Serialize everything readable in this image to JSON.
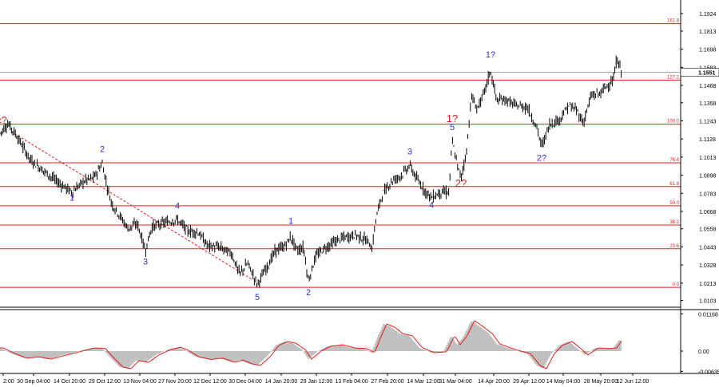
{
  "chart_data": [
    {
      "type": "line",
      "chart_kind": "candlestick price chart (EUR/USD-style, 4H) with Fibonacci levels and Elliott wave labels",
      "y_ticks": [
        "1.1924",
        "1.1813",
        "1.1698",
        "1.1583",
        "1.1468",
        "1.1358",
        "1.1243",
        "1.1128",
        "1.1013",
        "1.0898",
        "1.0783",
        "1.0668",
        "1.0558",
        "1.0443",
        "1.0328",
        "1.0213",
        "1.0103"
      ],
      "price_tag": "1.1551",
      "current_price": 1.1551,
      "x_ticks": [
        "2:00",
        "30 Sep 04:00",
        "14 Oct 20:00",
        "29 Oct 12:00",
        "13 Nov 04:00",
        "27 Nov 20:00",
        "12 Dec 12:00",
        "30 Dec 04:00",
        "14 Jan 20:00",
        "29 Jan 12:00",
        "13 Feb 04:00",
        "27 Feb 20:00",
        "14 Mar 12:00",
        "31 Mar 04:00",
        "14 Apr 20:00",
        "29 Apr 12:00",
        "14 May 04:00",
        "28 May 20:00",
        "12 Jun 12:00"
      ],
      "fib_levels": [
        {
          "label": "161.8",
          "price": 1.186
        },
        {
          "label": "127.2",
          "price": 1.1502
        },
        {
          "label": "100.0",
          "price": 1.1222
        },
        {
          "label": "76.4",
          "price": 1.0977
        },
        {
          "label": "61.8",
          "price": 1.0826
        },
        {
          "label": "50.0",
          "price": 1.0704
        },
        {
          "label": "38.2",
          "price": 1.0582
        },
        {
          "label": "23.6",
          "price": 1.0431
        },
        {
          "label": "0.0",
          "price": 1.0186
        }
      ],
      "wave_labels": [
        {
          "text": "c?",
          "color": "#e31c1c",
          "at": 2,
          "price": 1.1225
        },
        {
          "text": "1",
          "color": "#2f2fd0",
          "at": 90,
          "price": 1.0735
        },
        {
          "text": "2",
          "color": "#2f2fd0",
          "at": 128,
          "price": 1.1045
        },
        {
          "text": "3",
          "color": "#2f2fd0",
          "at": 182,
          "price": 1.033
        },
        {
          "text": "4",
          "color": "#2f2fd0",
          "at": 222,
          "price": 1.0685
        },
        {
          "text": "5",
          "color": "#2f2fd0",
          "at": 322,
          "price": 1.0105
        },
        {
          "text": "1",
          "color": "#2f2fd0",
          "at": 364,
          "price": 1.059
        },
        {
          "text": "2",
          "color": "#2f2fd0",
          "at": 386,
          "price": 1.0135
        },
        {
          "text": "3",
          "color": "#2f2fd0",
          "at": 513,
          "price": 1.103
        },
        {
          "text": "4",
          "color": "#2f2fd0",
          "at": 540,
          "price": 1.069
        },
        {
          "text": "5",
          "color": "#2f2fd0",
          "at": 566,
          "price": 1.1185
        },
        {
          "text": "1?",
          "color": "#e31c1c",
          "at": 566,
          "price": 1.1235
        },
        {
          "text": "2?",
          "color": "#e31c1c",
          "at": 577,
          "price": 1.0825
        },
        {
          "text": "1?",
          "color": "#2f2fd0",
          "at": 614,
          "price": 1.1645
        },
        {
          "text": "2?",
          "color": "#2f2fd0",
          "at": 678,
          "price": 1.099
        }
      ],
      "price_path": [
        [
          0,
          1.1165
        ],
        [
          10,
          1.1225
        ],
        [
          20,
          1.1155
        ],
        [
          38,
          1.0995
        ],
        [
          55,
          1.0925
        ],
        [
          72,
          1.0855
        ],
        [
          90,
          1.079
        ],
        [
          105,
          1.086
        ],
        [
          118,
          1.0885
        ],
        [
          128,
          1.0975
        ],
        [
          134,
          1.083
        ],
        [
          140,
          1.0715
        ],
        [
          150,
          1.064
        ],
        [
          160,
          1.056
        ],
        [
          172,
          1.059
        ],
        [
          182,
          1.042
        ],
        [
          190,
          1.057
        ],
        [
          205,
          1.0595
        ],
        [
          222,
          1.0615
        ],
        [
          235,
          1.0545
        ],
        [
          248,
          1.0535
        ],
        [
          260,
          1.045
        ],
        [
          275,
          1.044
        ],
        [
          290,
          1.04
        ],
        [
          300,
          1.027
        ],
        [
          310,
          1.034
        ],
        [
          322,
          1.0205
        ],
        [
          332,
          1.0295
        ],
        [
          345,
          1.042
        ],
        [
          356,
          1.0445
        ],
        [
          364,
          1.0505
        ],
        [
          372,
          1.042
        ],
        [
          380,
          1.044
        ],
        [
          386,
          1.0225
        ],
        [
          395,
          1.038
        ],
        [
          405,
          1.043
        ],
        [
          420,
          1.048
        ],
        [
          430,
          1.05
        ],
        [
          445,
          1.052
        ],
        [
          460,
          1.048
        ],
        [
          466,
          1.043
        ],
        [
          470,
          1.061
        ],
        [
          478,
          1.077
        ],
        [
          490,
          1.086
        ],
        [
          503,
          1.09
        ],
        [
          513,
          1.096
        ],
        [
          522,
          1.087
        ],
        [
          532,
          1.08
        ],
        [
          540,
          1.0755
        ],
        [
          552,
          1.079
        ],
        [
          562,
          1.079
        ],
        [
          566,
          1.112
        ],
        [
          572,
          1.097
        ],
        [
          577,
          1.088
        ],
        [
          584,
          1.105
        ],
        [
          590,
          1.14
        ],
        [
          597,
          1.132
        ],
        [
          604,
          1.139
        ],
        [
          614,
          1.156
        ],
        [
          622,
          1.137
        ],
        [
          632,
          1.138
        ],
        [
          645,
          1.134
        ],
        [
          660,
          1.133
        ],
        [
          672,
          1.12
        ],
        [
          678,
          1.108
        ],
        [
          688,
          1.122
        ],
        [
          700,
          1.125
        ],
        [
          712,
          1.134
        ],
        [
          722,
          1.131
        ],
        [
          730,
          1.123
        ],
        [
          740,
          1.14
        ],
        [
          752,
          1.142
        ],
        [
          760,
          1.147
        ],
        [
          768,
          1.15
        ],
        [
          772,
          1.164
        ],
        [
          778,
          1.1551
        ]
      ]
    },
    {
      "type": "area",
      "chart_kind": "oscillator sub-window (histogram with signal line)",
      "y_ticks": [
        "0.01168",
        "0.00",
        "-0.00635"
      ],
      "ylim": [
        -0.007,
        0.0125
      ],
      "bar_color": "#bdbdbd",
      "signal_color": "#e31c1c",
      "histogram_path": [
        [
          0,
          0.001
        ],
        [
          15,
          -0.0008
        ],
        [
          30,
          -0.0022
        ],
        [
          45,
          -0.0018
        ],
        [
          60,
          -0.0025
        ],
        [
          75,
          -0.0015
        ],
        [
          90,
          -0.0006
        ],
        [
          105,
          0.0004
        ],
        [
          115,
          0.001
        ],
        [
          128,
          0.0008
        ],
        [
          138,
          -0.002
        ],
        [
          150,
          -0.005
        ],
        [
          160,
          -0.0055
        ],
        [
          170,
          -0.003
        ],
        [
          182,
          -0.0035
        ],
        [
          195,
          -0.0012
        ],
        [
          210,
          0.0005
        ],
        [
          222,
          0.0012
        ],
        [
          232,
          0.0002
        ],
        [
          245,
          -0.0018
        ],
        [
          260,
          -0.0026
        ],
        [
          275,
          -0.0022
        ],
        [
          290,
          -0.0035
        ],
        [
          300,
          -0.0028
        ],
        [
          312,
          -0.004
        ],
        [
          322,
          -0.0045
        ],
        [
          335,
          -0.0015
        ],
        [
          345,
          0.0018
        ],
        [
          356,
          0.003
        ],
        [
          366,
          0.0025
        ],
        [
          378,
          0.0005
        ],
        [
          386,
          -0.0025
        ],
        [
          398,
          0.0
        ],
        [
          410,
          0.0015
        ],
        [
          425,
          0.002
        ],
        [
          440,
          0.001
        ],
        [
          455,
          0.0008
        ],
        [
          465,
          -0.0005
        ],
        [
          472,
          0.004
        ],
        [
          480,
          0.0085
        ],
        [
          490,
          0.0075
        ],
        [
          500,
          0.0055
        ],
        [
          512,
          0.0048
        ],
        [
          525,
          0.001
        ],
        [
          540,
          -0.0005
        ],
        [
          555,
          -0.0002
        ],
        [
          565,
          0.0048
        ],
        [
          572,
          0.002
        ],
        [
          580,
          0.0045
        ],
        [
          590,
          0.0095
        ],
        [
          600,
          0.0078
        ],
        [
          612,
          0.0055
        ],
        [
          622,
          0.0022
        ],
        [
          635,
          0.001
        ],
        [
          648,
          0.0
        ],
        [
          660,
          -0.0008
        ],
        [
          672,
          -0.0045
        ],
        [
          680,
          -0.0055
        ],
        [
          690,
          -0.0008
        ],
        [
          700,
          0.0018
        ],
        [
          712,
          0.003
        ],
        [
          722,
          0.001
        ],
        [
          732,
          -0.0012
        ],
        [
          745,
          0.001
        ],
        [
          758,
          0.0008
        ],
        [
          768,
          0.001
        ],
        [
          775,
          0.0035
        ],
        [
          778,
          0.003
        ]
      ]
    }
  ]
}
